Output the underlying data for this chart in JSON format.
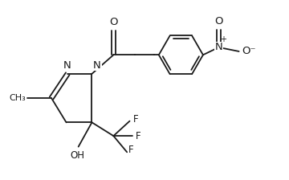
{
  "bg_color": "#ffffff",
  "line_color": "#1a1a1a",
  "line_width": 1.3,
  "font_size": 8.5,
  "xlim": [
    0,
    10
  ],
  "ylim": [
    0,
    6.5
  ]
}
